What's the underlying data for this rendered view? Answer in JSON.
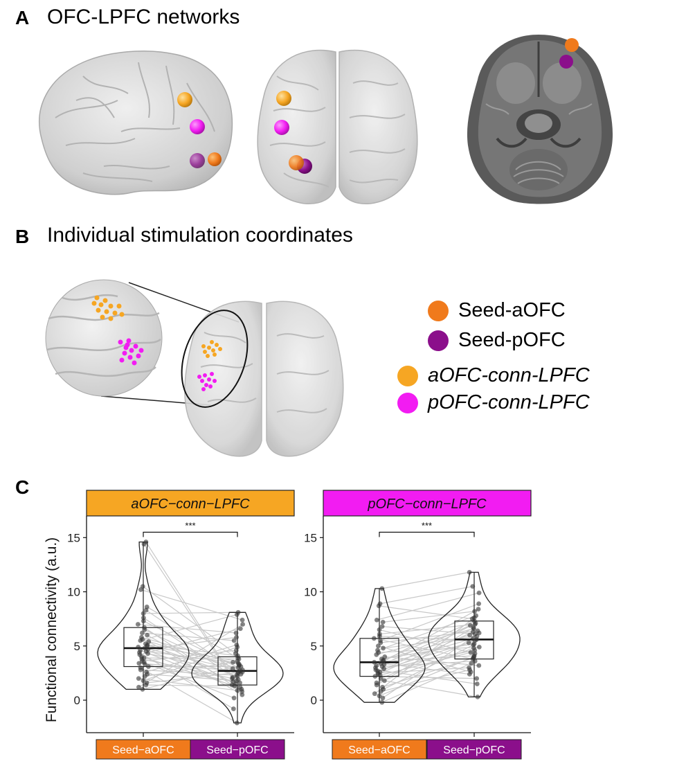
{
  "panels": {
    "a": {
      "letter": "A",
      "title": "OFC-LPFC networks"
    },
    "b": {
      "letter": "B",
      "title": "Individual stimulation coordinates"
    },
    "c": {
      "letter": "C"
    }
  },
  "legend": {
    "items": [
      {
        "label": "Seed-aOFC",
        "color": "#F07A1C",
        "italic": false
      },
      {
        "label": "Seed-pOFC",
        "color": "#8B0F8B",
        "italic": false
      },
      {
        "label": "aOFC-conn-LPFC",
        "color": "#F6A623",
        "italic": true
      },
      {
        "label": "pOFC-conn-LPFC",
        "color": "#F21CF2",
        "italic": true
      }
    ]
  },
  "colors": {
    "seed_aofc": "#F07A1C",
    "seed_pofc": "#8B0F8B",
    "aofc_conn": "#F6A623",
    "pofc_conn": "#F21CF2",
    "brain_fill": "#d3d3d3",
    "mri_bg": "#5f5f5f"
  },
  "chart_data": [
    {
      "type": "violin-box-scatter",
      "facet_label": "aOFC−conn−LPFC",
      "facet_color": "#F6A623",
      "ylabel": "Functional connectivity (a.u.)",
      "ylim": [
        -3,
        17
      ],
      "yticks": [
        0,
        5,
        10,
        15
      ],
      "ytick_labels": [
        "0",
        "5",
        "10",
        "15"
      ],
      "categories": [
        "Seed−aOFC",
        "Seed−pOFC"
      ],
      "category_colors": [
        "#F07A1C",
        "#8B0F8B"
      ],
      "significance": "***",
      "paired_lines": true,
      "box": [
        {
          "category": "Seed−aOFC",
          "min": 1.0,
          "q1": 3.1,
          "median": 4.8,
          "q3": 6.7,
          "max": 14.6
        },
        {
          "category": "Seed−pOFC",
          "min": -2.1,
          "q1": 1.4,
          "median": 2.7,
          "q3": 4.0,
          "max": 8.1
        }
      ],
      "series": [
        {
          "name": "Seed−aOFC",
          "values": [
            14.6,
            14.4,
            10.5,
            10.2,
            8.6,
            8.3,
            8.0,
            7.6,
            7.3,
            7.0,
            6.7,
            6.5,
            6.2,
            6.0,
            5.8,
            5.6,
            5.5,
            5.4,
            5.2,
            5.1,
            5.0,
            4.9,
            4.8,
            4.7,
            4.6,
            4.5,
            4.4,
            4.3,
            4.2,
            4.0,
            3.9,
            3.8,
            3.6,
            3.5,
            3.4,
            3.3,
            3.1,
            3.0,
            2.8,
            2.6,
            2.4,
            2.2,
            2.0,
            1.8,
            1.6,
            1.4,
            1.2,
            1.0
          ]
        },
        {
          "name": "Seed−pOFC",
          "values": [
            2.1,
            1.5,
            4.3,
            7.4,
            3.9,
            2.6,
            8.1,
            1.9,
            3.0,
            6.2,
            0.8,
            2.4,
            5.5,
            1.2,
            3.3,
            2.8,
            7.9,
            0.5,
            2.2,
            4.1,
            3.6,
            1.7,
            2.9,
            5.8,
            1.0,
            3.4,
            -0.8,
            2.5,
            6.6,
            1.4,
            3.8,
            2.0,
            4.6,
            0.2,
            2.7,
            1.6,
            3.1,
            -2.1,
            2.3,
            5.1,
            1.8,
            3.5,
            0.9,
            4.9,
            2.6,
            1.3,
            7.0,
            3.2
          ]
        }
      ]
    },
    {
      "type": "violin-box-scatter",
      "facet_label": "pOFC−conn−LPFC",
      "facet_color": "#F21CF2",
      "ylabel": "",
      "ylim": [
        -3,
        17
      ],
      "yticks": [
        0,
        5,
        10,
        15
      ],
      "ytick_labels": [
        "0",
        "5",
        "10",
        "15"
      ],
      "categories": [
        "Seed−aOFC",
        "Seed−pOFC"
      ],
      "category_colors": [
        "#F07A1C",
        "#8B0F8B"
      ],
      "significance": "***",
      "paired_lines": true,
      "box": [
        {
          "category": "Seed−aOFC",
          "min": -0.2,
          "q1": 2.2,
          "median": 3.5,
          "q3": 5.7,
          "max": 10.3
        },
        {
          "category": "Seed−pOFC",
          "min": 0.3,
          "q1": 3.8,
          "median": 5.6,
          "q3": 7.3,
          "max": 11.8
        }
      ],
      "series": [
        {
          "name": "Seed−aOFC",
          "values": [
            10.3,
            8.9,
            8.7,
            7.4,
            7.2,
            6.8,
            6.5,
            6.1,
            5.9,
            5.7,
            5.5,
            5.3,
            5.0,
            4.8,
            4.6,
            4.4,
            4.2,
            4.0,
            3.8,
            3.7,
            3.6,
            3.5,
            3.4,
            3.3,
            3.2,
            3.1,
            3.0,
            2.9,
            2.8,
            2.7,
            2.6,
            2.5,
            2.4,
            2.3,
            2.2,
            2.0,
            1.8,
            1.6,
            1.4,
            1.2,
            1.0,
            0.8,
            0.6,
            0.4,
            0.2,
            -0.2
          ]
        },
        {
          "name": "Seed−pOFC",
          "values": [
            11.8,
            10.5,
            7.5,
            9.9,
            8.2,
            6.1,
            4.3,
            7.0,
            5.5,
            3.8,
            8.9,
            6.4,
            2.6,
            5.9,
            7.8,
            4.9,
            6.6,
            3.2,
            5.2,
            7.3,
            4.1,
            6.0,
            2.4,
            5.7,
            8.4,
            3.6,
            6.9,
            4.6,
            1.5,
            5.3,
            7.1,
            3.0,
            6.3,
            4.4,
            2.0,
            5.6,
            0.3,
            4.8,
            6.7,
            3.9,
            5.1,
            2.8,
            7.6,
            4.0,
            6.2,
            3.4
          ]
        }
      ]
    }
  ]
}
